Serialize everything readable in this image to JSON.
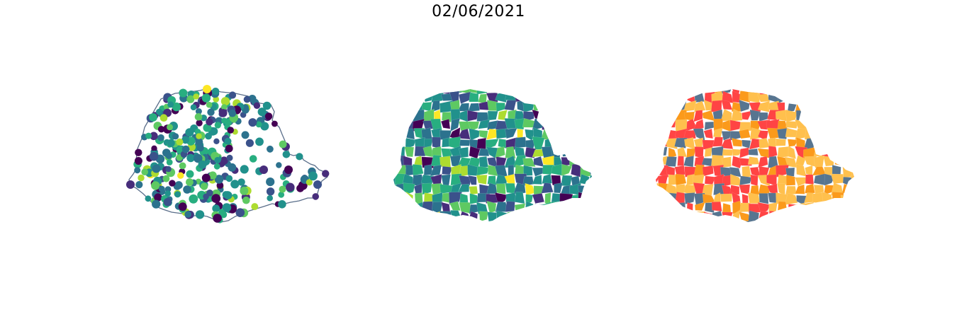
{
  "figure": {
    "title": "02/06/2021"
  },
  "maps": [
    {
      "id": "points",
      "style": "proportional-points",
      "colormap": "viridis"
    },
    {
      "id": "choropleth",
      "style": "continuous-choropleth",
      "colormap": "viridis"
    },
    {
      "id": "categorical",
      "style": "categorical-choropleth"
    }
  ],
  "colors": {
    "outline": "#5a6e8a",
    "viridis": [
      "#440154",
      "#472d7b",
      "#3b528b",
      "#2c728e",
      "#21918c",
      "#28ae80",
      "#5ec962",
      "#addc30",
      "#fde725"
    ],
    "categories": [
      "#ff4444",
      "#ffc04d",
      "#fb9a1b",
      "#577590"
    ]
  }
}
